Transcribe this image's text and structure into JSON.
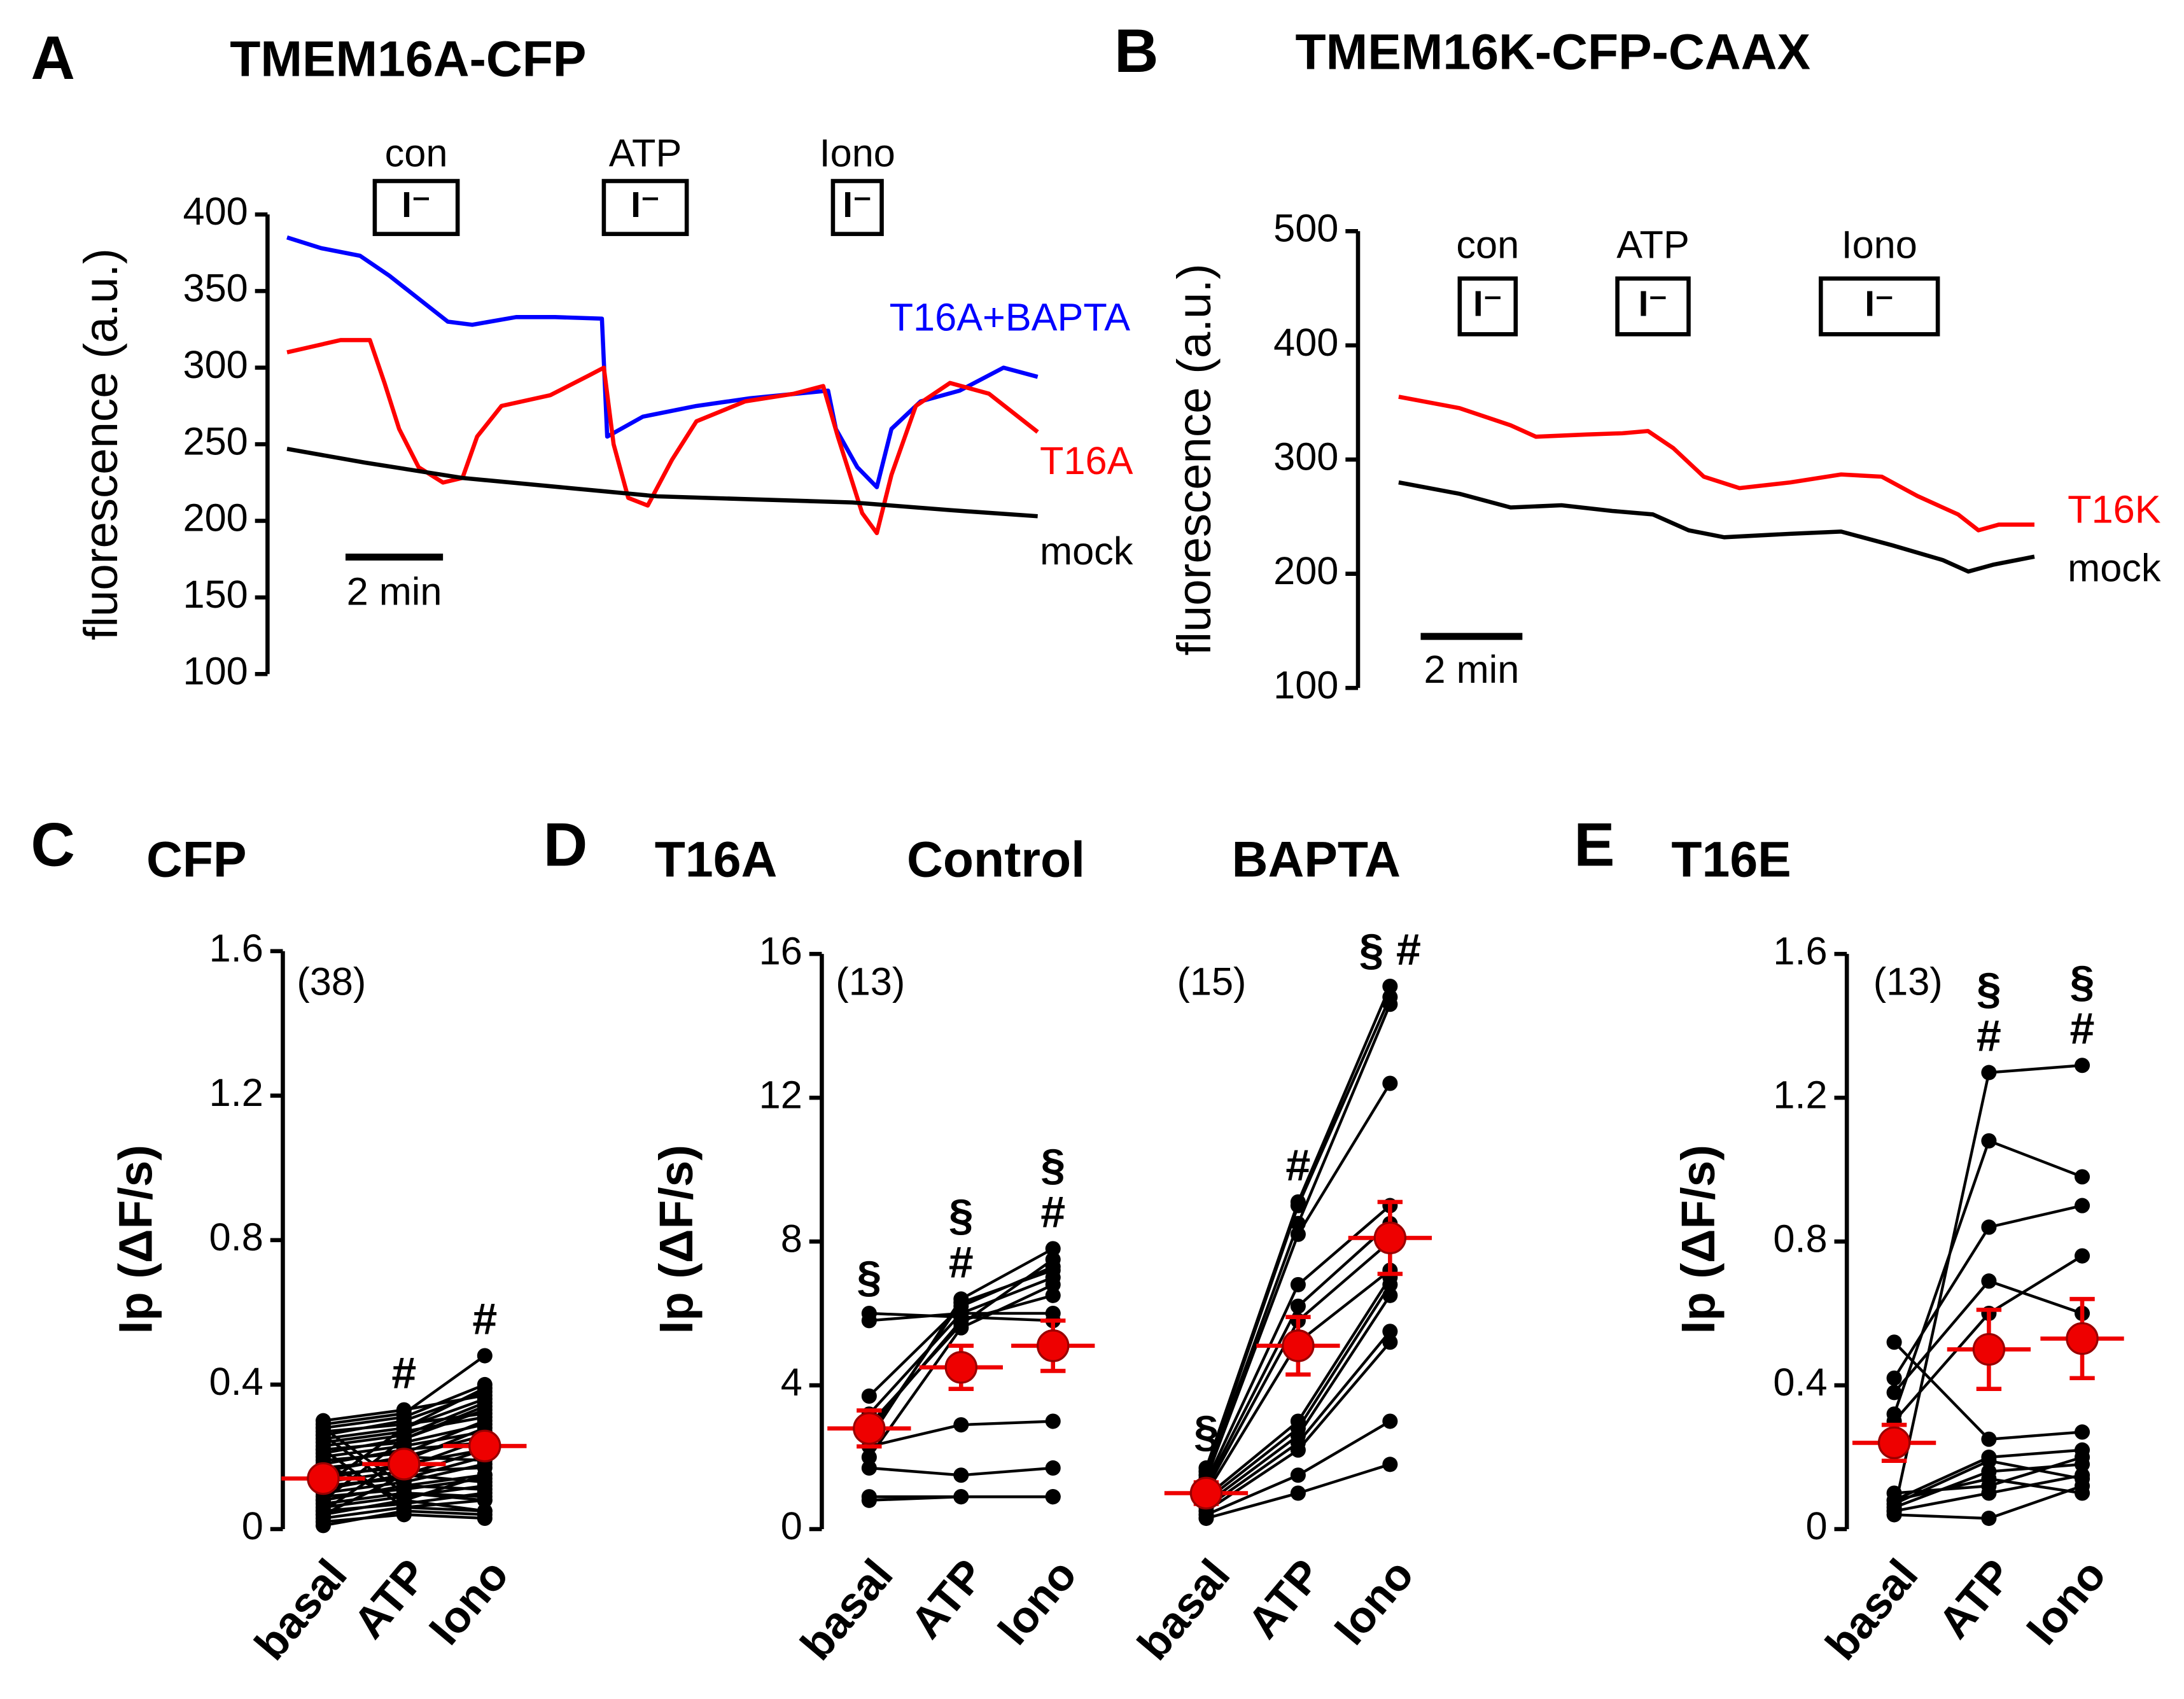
{
  "chart_data": [
    {
      "type": "line",
      "panel": "A",
      "title": "TMEM16A-CFP",
      "ylabel": "fluorescence (a.u.)",
      "xlim": [
        0,
        16
      ],
      "ylim": [
        100,
        400
      ],
      "yticks": [
        100,
        150,
        200,
        250,
        300,
        350,
        400
      ],
      "scale_bar": {
        "label": "2 min",
        "value": 2
      },
      "stimuli": [
        {
          "label": "con",
          "ion": "I⁻",
          "start": 2.2,
          "end": 3.9
        },
        {
          "label": "ATP",
          "ion": "I⁻",
          "start": 6.9,
          "end": 8.6
        },
        {
          "label": "Iono",
          "ion": "I⁻",
          "start": 11.6,
          "end": 12.6
        }
      ],
      "series": [
        {
          "name": "T16A+BAPTA",
          "color": "#0000ff",
          "x": [
            0.4,
            1.1,
            1.9,
            2.5,
            3.1,
            3.7,
            4.2,
            5.1,
            5.9,
            6.86,
            6.97,
            7.7,
            8.8,
            9.9,
            11.5,
            11.66,
            12.1,
            12.5,
            12.8,
            13.4,
            14.2,
            15.1,
            15.8
          ],
          "values": [
            385,
            378,
            373,
            360,
            345,
            330,
            328,
            333,
            333,
            332,
            255,
            268,
            275,
            280,
            285,
            260,
            235,
            222,
            260,
            278,
            285,
            300,
            294
          ]
        },
        {
          "name": "T16A",
          "color": "#ff0000",
          "x": [
            0.4,
            1.5,
            2.1,
            2.4,
            2.7,
            3.1,
            3.6,
            4.0,
            4.3,
            4.8,
            5.8,
            6.6,
            6.9,
            7.1,
            7.4,
            7.8,
            8.3,
            8.8,
            9.8,
            10.8,
            11.4,
            11.7,
            12.2,
            12.5,
            12.8,
            13.3,
            14.0,
            14.8,
            15.8
          ],
          "values": [
            310,
            318,
            318,
            290,
            260,
            235,
            225,
            228,
            255,
            275,
            282,
            295,
            300,
            250,
            215,
            210,
            240,
            265,
            278,
            283,
            288,
            255,
            205,
            192,
            230,
            275,
            290,
            283,
            258
          ]
        },
        {
          "name": "mock",
          "color": "#000000",
          "x": [
            0.4,
            2,
            4,
            6,
            8,
            10,
            12,
            14,
            15.8
          ],
          "values": [
            247,
            238,
            228,
            222,
            216,
            214,
            212,
            207,
            203
          ]
        }
      ]
    },
    {
      "type": "line",
      "panel": "B",
      "title": "TMEM16K-CFP-CAAX",
      "ylabel": "fluorescence (a.u.)",
      "xlim": [
        0,
        13.5
      ],
      "ylim": [
        100,
        500
      ],
      "yticks": [
        100,
        200,
        300,
        400,
        500
      ],
      "scale_bar": {
        "label": "2 min",
        "value": 2
      },
      "stimuli": [
        {
          "label": "con",
          "ion": "I⁻",
          "start": 2.0,
          "end": 3.1
        },
        {
          "label": "ATP",
          "ion": "I⁻",
          "start": 5.1,
          "end": 6.5
        },
        {
          "label": "Iono",
          "ion": "I⁻",
          "start": 9.1,
          "end": 11.4
        }
      ],
      "series": [
        {
          "name": "T16K",
          "color": "#ff0000",
          "x": [
            0.8,
            2,
            3,
            3.5,
            4.5,
            5.2,
            5.7,
            6.2,
            6.8,
            7.5,
            8.5,
            9.5,
            10.3,
            11,
            11.8,
            12.2,
            12.6,
            13.3
          ],
          "values": [
            355,
            345,
            330,
            320,
            322,
            323,
            325,
            310,
            285,
            275,
            280,
            287,
            285,
            268,
            252,
            238,
            243,
            243
          ]
        },
        {
          "name": "mock",
          "color": "#000000",
          "x": [
            0.8,
            2,
            3,
            4,
            5,
            5.8,
            6.5,
            7.2,
            8.5,
            9.5,
            10.5,
            11.5,
            12,
            12.5,
            13.3
          ],
          "values": [
            280,
            270,
            258,
            260,
            255,
            252,
            238,
            232,
            235,
            237,
            225,
            212,
            202,
            208,
            215
          ]
        }
      ]
    },
    {
      "type": "dot",
      "panel": "C",
      "title": "CFP",
      "ylabel": "Ip (ΔF/s)",
      "categories": [
        "basal",
        "ATP",
        "Iono"
      ],
      "ylim": [
        0,
        1.6
      ],
      "yticks": [
        0,
        0.4,
        0.8,
        1.2,
        1.6
      ],
      "groups": [
        {
          "n_label": "(38)",
          "mean": [
            0.14,
            0.18,
            0.23
          ],
          "error": [
            0.02,
            0.02,
            0.02
          ],
          "annotations": [
            [],
            [
              "#"
            ],
            [
              "#"
            ]
          ],
          "individual": [
            [
              0.01,
              0.05,
              0.04
            ],
            [
              0.02,
              0.04,
              0.03
            ],
            [
              0.03,
              0.06,
              0.08
            ],
            [
              0.04,
              0.08,
              0.05
            ],
            [
              0.05,
              0.07,
              0.1
            ],
            [
              0.06,
              0.09,
              0.12
            ],
            [
              0.07,
              0.1,
              0.08
            ],
            [
              0.08,
              0.12,
              0.15
            ],
            [
              0.09,
              0.11,
              0.14
            ],
            [
              0.1,
              0.13,
              0.18
            ],
            [
              0.11,
              0.15,
              0.13
            ],
            [
              0.12,
              0.14,
              0.2
            ],
            [
              0.13,
              0.16,
              0.17
            ],
            [
              0.14,
              0.18,
              0.22
            ],
            [
              0.15,
              0.17,
              0.25
            ],
            [
              0.16,
              0.2,
              0.19
            ],
            [
              0.17,
              0.19,
              0.28
            ],
            [
              0.18,
              0.22,
              0.24
            ],
            [
              0.19,
              0.21,
              0.3
            ],
            [
              0.2,
              0.23,
              0.27
            ],
            [
              0.21,
              0.25,
              0.33
            ],
            [
              0.22,
              0.24,
              0.29
            ],
            [
              0.23,
              0.26,
              0.35
            ],
            [
              0.24,
              0.27,
              0.31
            ],
            [
              0.25,
              0.28,
              0.36
            ],
            [
              0.26,
              0.3,
              0.38
            ],
            [
              0.27,
              0.29,
              0.32
            ],
            [
              0.28,
              0.31,
              0.4
            ],
            [
              0.29,
              0.32,
              0.48
            ],
            [
              0.3,
              0.33,
              0.37
            ],
            [
              0.05,
              0.2,
              0.26
            ],
            [
              0.08,
              0.25,
              0.34
            ],
            [
              0.12,
              0.28,
              0.39
            ],
            [
              0.26,
              0.1,
              0.09
            ],
            [
              0.28,
              0.12,
              0.11
            ],
            [
              0.22,
              0.06,
              0.05
            ],
            [
              0.18,
              0.08,
              0.15
            ],
            [
              0.04,
              0.15,
              0.22
            ]
          ]
        }
      ]
    },
    {
      "type": "dot",
      "panel": "D",
      "title": "T16A",
      "ylabel": "Ip (ΔF/s)",
      "categories": [
        "basal",
        "ATP",
        "Iono"
      ],
      "ylim": [
        0,
        16
      ],
      "yticks": [
        0,
        4,
        8,
        12,
        16
      ],
      "groups": [
        {
          "title": "Control",
          "n_label": "(13)",
          "mean": [
            2.8,
            4.5,
            5.1
          ],
          "error": [
            0.5,
            0.6,
            0.7
          ],
          "annotations": [
            [
              "§"
            ],
            [
              "§",
              "#"
            ],
            [
              "§",
              "#"
            ]
          ],
          "individual": [
            [
              0.8,
              0.9,
              0.9
            ],
            [
              0.9,
              0.9,
              0.9
            ],
            [
              1.7,
              1.5,
              1.7
            ],
            [
              2.3,
              2.9,
              3.0
            ],
            [
              2.8,
              5.8,
              6.5
            ],
            [
              3.2,
              6.0,
              7.0
            ],
            [
              3.7,
              6.2,
              7.3
            ],
            [
              2.0,
              5.6,
              6.8
            ],
            [
              2.5,
              6.4,
              7.8
            ],
            [
              5.8,
              6.0,
              6.0
            ],
            [
              6.0,
              5.9,
              5.8
            ],
            [
              2.9,
              5.7,
              7.5
            ],
            [
              2.6,
              6.3,
              7.2
            ]
          ]
        },
        {
          "title": "BAPTA",
          "n_label": "(15)",
          "mean": [
            1.0,
            5.1,
            8.1
          ],
          "error": [
            0.3,
            0.8,
            1.0
          ],
          "annotations": [
            [
              "§"
            ],
            [
              "#"
            ],
            [
              "§ #"
            ]
          ],
          "individual": [
            [
              0.3,
              1.0,
              1.8
            ],
            [
              0.4,
              1.5,
              3.0
            ],
            [
              0.5,
              2.2,
              5.2
            ],
            [
              0.6,
              2.4,
              5.5
            ],
            [
              0.7,
              2.6,
              6.5
            ],
            [
              0.8,
              2.8,
              6.8
            ],
            [
              0.9,
              3.0,
              7.0
            ],
            [
              1.0,
              5.2,
              7.2
            ],
            [
              1.1,
              5.8,
              8.0
            ],
            [
              1.2,
              6.2,
              8.5
            ],
            [
              1.3,
              6.8,
              9.0
            ],
            [
              1.4,
              8.2,
              12.4
            ],
            [
              1.5,
              8.5,
              14.6
            ],
            [
              1.6,
              9.0,
              14.8
            ],
            [
              1.7,
              9.1,
              15.1
            ]
          ]
        }
      ]
    },
    {
      "type": "dot",
      "panel": "E",
      "title": "T16E",
      "ylabel": "Ip (ΔF/s)",
      "categories": [
        "basal",
        "ATP",
        "Iono"
      ],
      "ylim": [
        0,
        1.6
      ],
      "yticks": [
        0,
        0.4,
        0.8,
        1.2,
        1.6
      ],
      "groups": [
        {
          "n_label": "(13)",
          "mean": [
            0.24,
            0.5,
            0.53
          ],
          "error": [
            0.05,
            0.11,
            0.11
          ],
          "annotations": [
            [],
            [
              "§",
              "#"
            ],
            [
              "§",
              "#"
            ]
          ],
          "individual": [
            [
              0.05,
              1.27,
              1.29
            ],
            [
              0.32,
              1.08,
              0.98
            ],
            [
              0.42,
              0.84,
              0.9
            ],
            [
              0.38,
              0.69,
              0.6
            ],
            [
              0.52,
              0.25,
              0.27
            ],
            [
              0.3,
              0.6,
              0.76
            ],
            [
              0.08,
              0.2,
              0.22
            ],
            [
              0.06,
              0.16,
              0.18
            ],
            [
              0.1,
              0.12,
              0.2
            ],
            [
              0.04,
              0.03,
              0.12
            ],
            [
              0.05,
              0.1,
              0.15
            ],
            [
              0.08,
              0.14,
              0.1
            ],
            [
              0.07,
              0.19,
              0.14
            ]
          ]
        }
      ]
    }
  ]
}
